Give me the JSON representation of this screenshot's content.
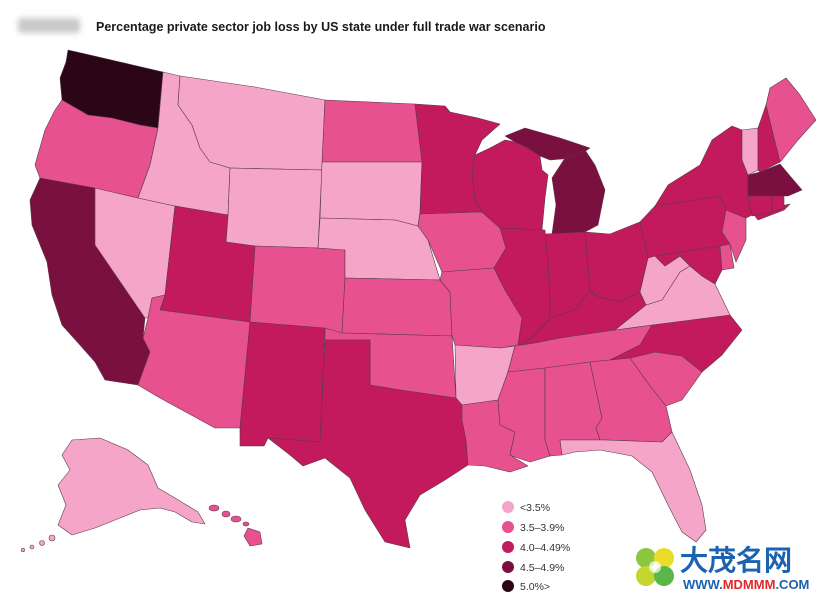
{
  "header": {
    "title": "Percentage private sector job loss by US state under full trade war scenario"
  },
  "map": {
    "legend": [
      {
        "label": "<3.5%",
        "color": "#f4a5c8"
      },
      {
        "label": "3.5–3.9%",
        "color": "#e8518f"
      },
      {
        "label": "4.0–4.49%",
        "color": "#c21a5c"
      },
      {
        "label": "4.5–4.9%",
        "color": "#7a1040"
      },
      {
        "label": "5.0%>",
        "color": "#2b0616"
      }
    ],
    "state_category": {
      "AK": 0,
      "AL": 1,
      "AR": 0,
      "AZ": 1,
      "CA": 3,
      "CO": 1,
      "CT": 2,
      "DE": 1,
      "FL": 0,
      "GA": 1,
      "HI": 1,
      "IA": 1,
      "ID": 0,
      "IL": 2,
      "IN": 2,
      "KS": 1,
      "KY": 2,
      "LA": 1,
      "MA": 3,
      "MD": 2,
      "ME": 1,
      "MI": 3,
      "MN": 2,
      "MO": 1,
      "MS": 1,
      "MT": 0,
      "NC": 2,
      "ND": 1,
      "NE": 0,
      "NH": 2,
      "NJ": 1,
      "NM": 2,
      "NV": 0,
      "NY": 2,
      "OH": 2,
      "OK": 1,
      "OR": 1,
      "PA": 2,
      "RI": 2,
      "SC": 1,
      "SD": 0,
      "TN": 1,
      "TX": 2,
      "UT": 2,
      "VA": 0,
      "VT": 0,
      "WA": 4,
      "WI": 2,
      "WV": 0,
      "WY": 0
    }
  },
  "watermark": {
    "name": "大茂名网",
    "url_www": "WWW.",
    "url_domain": "MDMMM",
    "url_tld": ".COM",
    "name_color": "#1b62b3",
    "domain_color": "#e02828"
  }
}
